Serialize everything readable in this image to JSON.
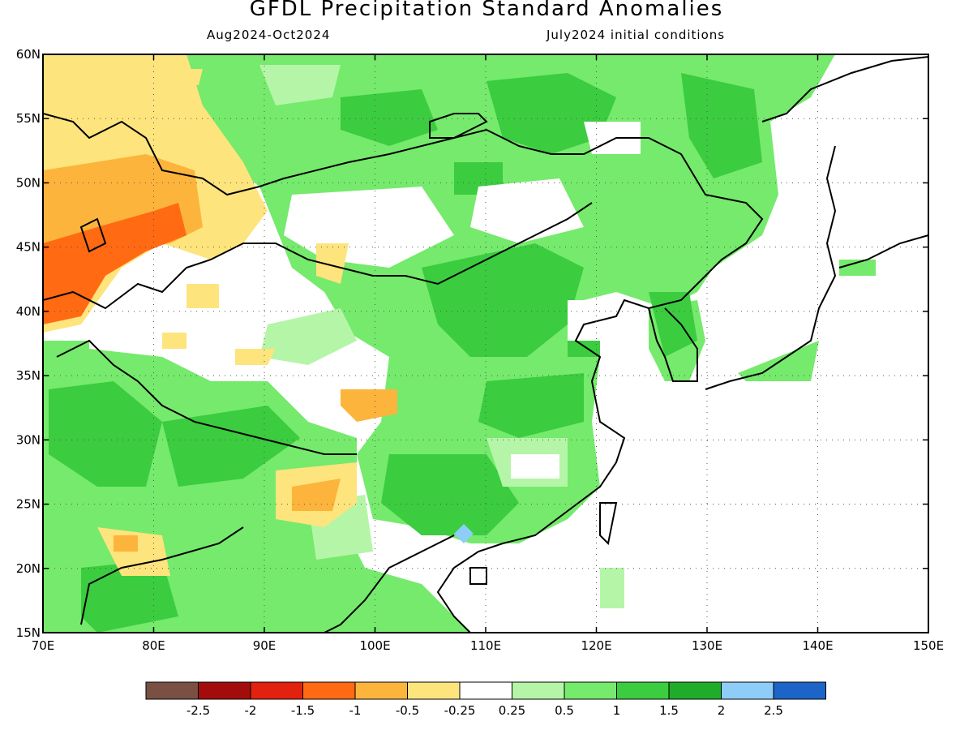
{
  "title": "GFDL Precipitation Standard Anomalies",
  "subtitle_left": "Aug2024-Oct2024",
  "subtitle_right": "July2024 initial conditions",
  "map": {
    "lon_range": [
      70,
      150
    ],
    "lat_range": [
      15,
      60
    ],
    "lon_ticks": [
      "70E",
      "80E",
      "90E",
      "100E",
      "110E",
      "120E",
      "130E",
      "140E",
      "150E"
    ],
    "lat_ticks": [
      "15N",
      "20N",
      "25N",
      "30N",
      "35N",
      "40N",
      "45N",
      "50N",
      "55N",
      "60N"
    ],
    "gridlines": "dotted"
  },
  "legend": {
    "colors": [
      "#7a5044",
      "#a20d0b",
      "#e2210e",
      "#ff6a12",
      "#fdb43c",
      "#fde47d",
      "#ffffff",
      "#b5f5a7",
      "#75ea6c",
      "#3bcc3f",
      "#1fad29",
      "#8ecdf8",
      "#1c64c8"
    ],
    "labels": [
      "-2.5",
      "-2",
      "-1.5",
      "-1",
      "-0.5",
      "-0.25",
      "0.25",
      "0.5",
      "1",
      "1.5",
      "2",
      "2.5"
    ]
  }
}
